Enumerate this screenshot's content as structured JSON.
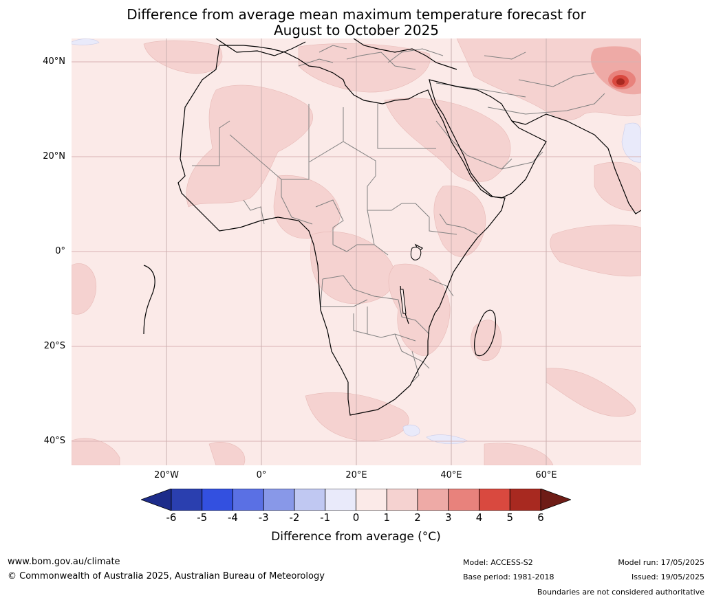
{
  "title_line1": "Difference from average mean maximum temperature forecast for",
  "title_line2": "August to October 2025",
  "map": {
    "region": "Africa",
    "background_anomaly_color": "#fbeae8",
    "colors": {
      "warm_1_2": "#f5d2d0",
      "warm_2_3": "#eeaaa6",
      "warm_3_4": "#e8827c",
      "warm_4_5": "#d9493f",
      "warm_5_6": "#a82920",
      "cool_0_1": "#e9eafa",
      "coast": "#000000",
      "border": "#808080",
      "grid": "#d9b3b3"
    }
  },
  "axes": {
    "lat_labels": [
      "40°N",
      "20°N",
      "0°",
      "20°S",
      "40°S"
    ],
    "lon_labels": [
      "20°W",
      "0°",
      "20°E",
      "40°E",
      "60°E"
    ]
  },
  "colorbar": {
    "ticks": [
      "-6",
      "-5",
      "-4",
      "-3",
      "-2",
      "-1",
      "0",
      "1",
      "2",
      "3",
      "4",
      "5",
      "6"
    ],
    "colors": [
      "#1d2c8a",
      "#2a3faf",
      "#3350e0",
      "#5a70e4",
      "#8898e8",
      "#c0c8f2",
      "#e9eafa",
      "#fbeae8",
      "#f5d2d0",
      "#eeaaa6",
      "#e8827c",
      "#d9493f",
      "#a82920",
      "#6e1c16"
    ],
    "label": "Difference from average (°C)"
  },
  "footer": {
    "website": "www.bom.gov.au/climate",
    "copyright": "© Commonwealth of Australia 2025, Australian Bureau of Meteorology",
    "model": "Model: ACCESS-S2",
    "base_period": "Base period: 1981-2018",
    "model_run": "Model run: 17/05/2025",
    "issued": "Issued: 19/05/2025",
    "disclaimer": "Boundaries are not considered authoritative"
  }
}
